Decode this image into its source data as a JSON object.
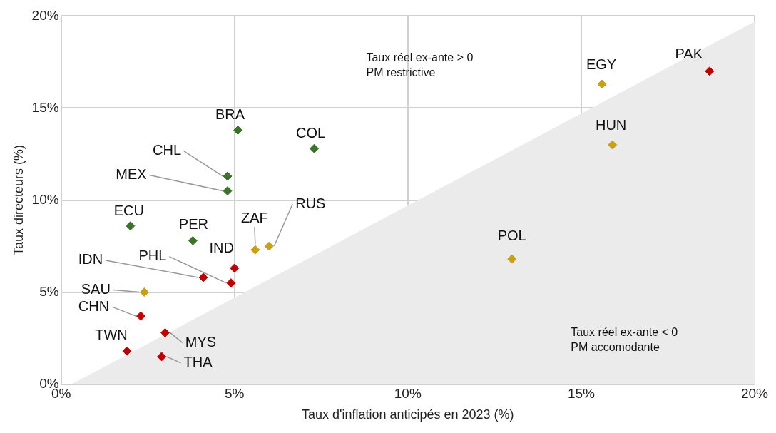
{
  "chart_data": {
    "type": "scatter",
    "xlabel": "Taux d'inflation anticipés en 2023 (%)",
    "ylabel": "Taux directeurs (%)",
    "xlim": [
      0,
      20
    ],
    "ylim": [
      0,
      20
    ],
    "xticks": [
      {
        "value": 0,
        "label": "0%"
      },
      {
        "value": 5,
        "label": "5%"
      },
      {
        "value": 10,
        "label": "10%"
      },
      {
        "value": 15,
        "label": "15%"
      },
      {
        "value": 20,
        "label": "20%"
      }
    ],
    "yticks": [
      {
        "value": 0,
        "label": "0%"
      },
      {
        "value": 5,
        "label": "5%"
      },
      {
        "value": 10,
        "label": "10%"
      },
      {
        "value": 15,
        "label": "15%"
      },
      {
        "value": 20,
        "label": "20%"
      }
    ],
    "grid": true,
    "legend": false,
    "marker": "diamond",
    "series": [
      {
        "type": "area",
        "marker": "none",
        "color": "#ebebeb",
        "x": [
          0.3,
          20
        ],
        "values": [
          0,
          19.7
        ]
      },
      {
        "color": "#3a7428",
        "x": [
          5.1,
          7.3,
          4.8,
          4.8,
          2.0,
          3.8
        ],
        "values": [
          13.8,
          12.8,
          11.3,
          10.5,
          8.6,
          7.8
        ]
      },
      {
        "color": "#c9a010",
        "x": [
          15.6,
          15.9,
          13.0,
          5.6,
          6.0,
          2.4
        ],
        "values": [
          16.3,
          13.0,
          6.8,
          7.3,
          7.5,
          5.0
        ]
      },
      {
        "color": "#c00000",
        "x": [
          18.7,
          5.0,
          4.1,
          4.9,
          2.3,
          3.0,
          1.9,
          2.9
        ],
        "values": [
          17.0,
          6.3,
          5.8,
          5.5,
          3.7,
          2.8,
          1.8,
          1.5
        ]
      }
    ],
    "annotations": [
      "Taux réel ex-ante > 0\nPM restrictive",
      "Taux réel ex-ante < 0\nPM accomodante",
      {
        "text": "BRA",
        "x": 5.1,
        "y": 13.8
      },
      {
        "text": "COL",
        "x": 7.3,
        "y": 12.8
      },
      {
        "text": "CHL",
        "x": 4.8,
        "y": 11.3
      },
      {
        "text": "MEX",
        "x": 4.8,
        "y": 10.5
      },
      {
        "text": "ECU",
        "x": 2.0,
        "y": 8.6
      },
      {
        "text": "PER",
        "x": 3.8,
        "y": 7.8
      },
      {
        "text": "EGY",
        "x": 15.6,
        "y": 16.3
      },
      {
        "text": "HUN",
        "x": 15.9,
        "y": 13.0
      },
      {
        "text": "POL",
        "x": 13.0,
        "y": 6.8
      },
      {
        "text": "ZAF",
        "x": 5.6,
        "y": 7.3
      },
      {
        "text": "RUS",
        "x": 6.0,
        "y": 7.5
      },
      {
        "text": "SAU",
        "x": 2.4,
        "y": 5.0
      },
      {
        "text": "PAK",
        "x": 18.7,
        "y": 17.0
      },
      {
        "text": "IND",
        "x": 5.0,
        "y": 6.3
      },
      {
        "text": "IDN",
        "x": 4.1,
        "y": 5.8
      },
      {
        "text": "PHL",
        "x": 4.9,
        "y": 5.5
      },
      {
        "text": "CHN",
        "x": 2.3,
        "y": 3.7
      },
      {
        "text": "MYS",
        "x": 3.0,
        "y": 2.8
      },
      {
        "text": "TWN",
        "x": 1.9,
        "y": 1.8
      },
      {
        "text": "THA",
        "x": 2.9,
        "y": 1.5
      }
    ]
  }
}
